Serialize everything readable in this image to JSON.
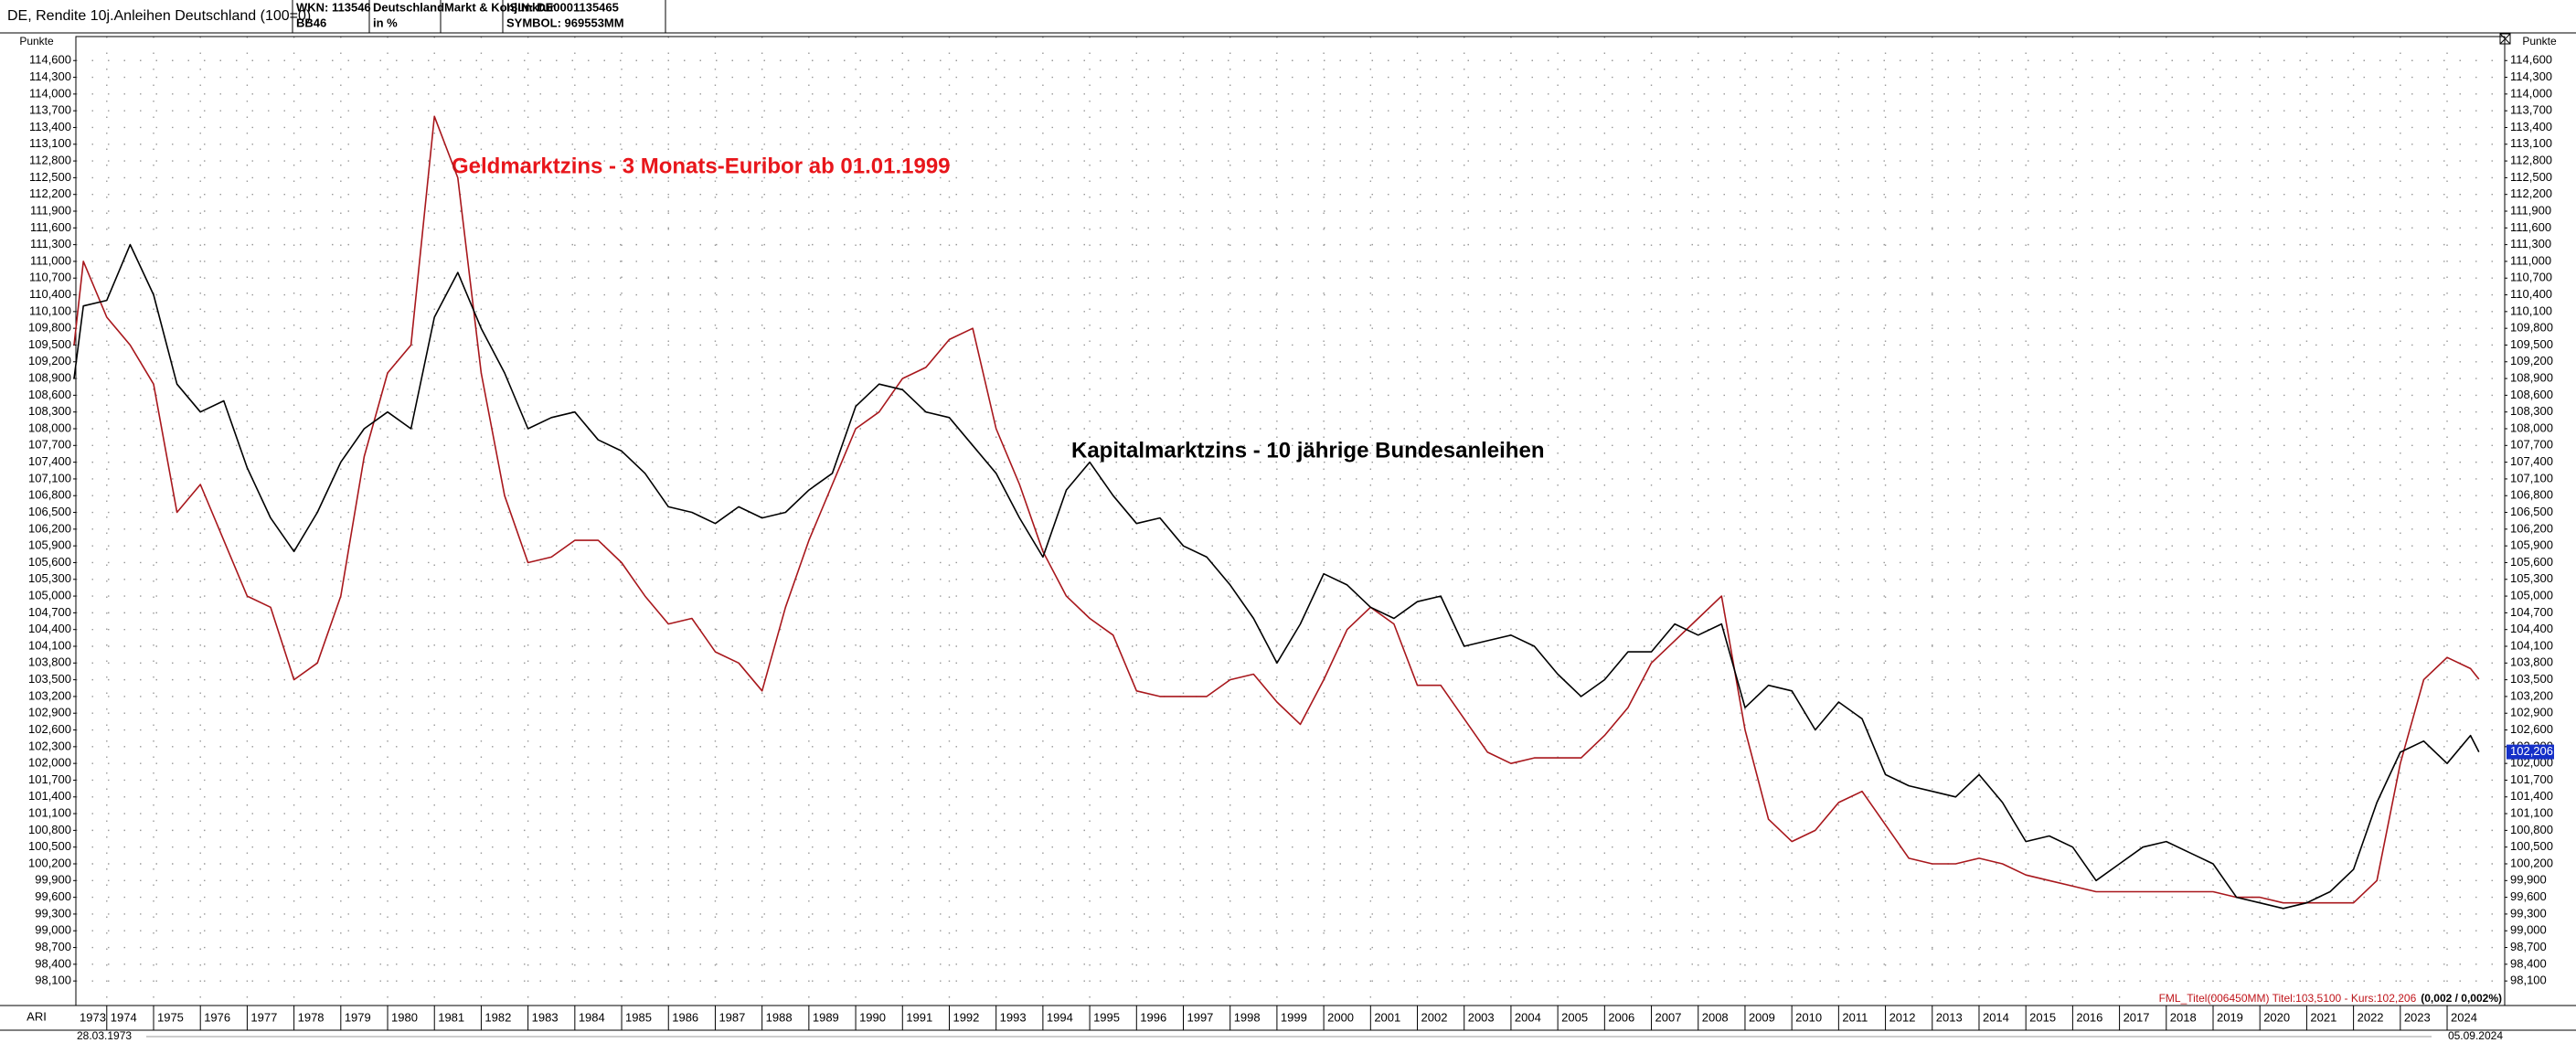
{
  "header": {
    "title": "DE, Rendite 10j.Anleihen Deutschland (100=0)",
    "cells": [
      [
        "WKN: 113546",
        "BB46"
      ],
      [
        "Deutschland",
        "in %"
      ],
      [
        "Markt & Konjunktur",
        ""
      ],
      [
        "ISIN: DE0001135465",
        "SYMBOL: 969553MM"
      ]
    ]
  },
  "chart_data": {
    "type": "line",
    "y_label": "Punkte",
    "annotations": [
      {
        "text": "Geldmarktzins - 3 Monats-Euribor ab 01.01.1999",
        "color": "#e8161b"
      },
      {
        "text": "Kapitalmarktzins - 10 jährige Bundesanleihen",
        "color": "#000000"
      }
    ],
    "footer_info": "FML_Titel(006450MM) Titel:103,5100 - Kurs:102,206",
    "footer_change": "(0,002 / 0,002%)",
    "current_label": "102,206",
    "left_label": "ARI",
    "start_date": "28.03.1973",
    "end_date": "05.09.2024",
    "grid": true,
    "xlim": [
      1973.34,
      2025.23
    ],
    "xticks": [
      1973,
      1974,
      1975,
      1976,
      1977,
      1978,
      1979,
      1980,
      1981,
      1982,
      1983,
      1984,
      1985,
      1986,
      1987,
      1988,
      1989,
      1990,
      1991,
      1992,
      1993,
      1994,
      1995,
      1996,
      1997,
      1998,
      1999,
      2000,
      2001,
      2002,
      2003,
      2004,
      2005,
      2006,
      2007,
      2008,
      2009,
      2010,
      2011,
      2012,
      2013,
      2014,
      2015,
      2016,
      2017,
      2018,
      2019,
      2020,
      2021,
      2022,
      2023,
      2024
    ],
    "ylim": [
      97.66,
      115.03
    ],
    "yticks": [
      {
        "value": 98.1,
        "label": "98,100"
      },
      {
        "value": 98.4,
        "label": "98,400"
      },
      {
        "value": 98.7,
        "label": "98,700"
      },
      {
        "value": 99.0,
        "label": "99,000"
      },
      {
        "value": 99.3,
        "label": "99,300"
      },
      {
        "value": 99.6,
        "label": "99,600"
      },
      {
        "value": 99.9,
        "label": "99,900"
      },
      {
        "value": 100.2,
        "label": "100,200"
      },
      {
        "value": 100.5,
        "label": "100,500"
      },
      {
        "value": 100.8,
        "label": "100,800"
      },
      {
        "value": 101.1,
        "label": "101,100"
      },
      {
        "value": 101.4,
        "label": "101,400"
      },
      {
        "value": 101.7,
        "label": "101,700"
      },
      {
        "value": 102.0,
        "label": "102,000"
      },
      {
        "value": 102.3,
        "label": "102,300"
      },
      {
        "value": 102.6,
        "label": "102,600"
      },
      {
        "value": 102.9,
        "label": "102,900"
      },
      {
        "value": 103.2,
        "label": "103,200"
      },
      {
        "value": 103.5,
        "label": "103,500"
      },
      {
        "value": 103.8,
        "label": "103,800"
      },
      {
        "value": 104.1,
        "label": "104,100"
      },
      {
        "value": 104.4,
        "label": "104,400"
      },
      {
        "value": 104.7,
        "label": "104,700"
      },
      {
        "value": 105.0,
        "label": "105,000"
      },
      {
        "value": 105.3,
        "label": "105,300"
      },
      {
        "value": 105.6,
        "label": "105,600"
      },
      {
        "value": 105.9,
        "label": "105,900"
      },
      {
        "value": 106.2,
        "label": "106,200"
      },
      {
        "value": 106.5,
        "label": "106,500"
      },
      {
        "value": 106.8,
        "label": "106,800"
      },
      {
        "value": 107.1,
        "label": "107,100"
      },
      {
        "value": 107.4,
        "label": "107,400"
      },
      {
        "value": 107.7,
        "label": "107,700"
      },
      {
        "value": 108.0,
        "label": "108,000"
      },
      {
        "value": 108.3,
        "label": "108,300"
      },
      {
        "value": 108.6,
        "label": "108,600"
      },
      {
        "value": 108.9,
        "label": "108,900"
      },
      {
        "value": 109.2,
        "label": "109,200"
      },
      {
        "value": 109.5,
        "label": "109,500"
      },
      {
        "value": 109.8,
        "label": "109,800"
      },
      {
        "value": 110.1,
        "label": "110,100"
      },
      {
        "value": 110.4,
        "label": "110,400"
      },
      {
        "value": 110.7,
        "label": "110,700"
      },
      {
        "value": 111.0,
        "label": "111,000"
      },
      {
        "value": 111.3,
        "label": "111,300"
      },
      {
        "value": 111.6,
        "label": "111,600"
      },
      {
        "value": 111.9,
        "label": "111,900"
      },
      {
        "value": 112.2,
        "label": "112,200"
      },
      {
        "value": 112.5,
        "label": "112,500"
      },
      {
        "value": 112.8,
        "label": "112,800"
      },
      {
        "value": 113.1,
        "label": "113,100"
      },
      {
        "value": 113.4,
        "label": "113,400"
      },
      {
        "value": 113.7,
        "label": "113,700"
      },
      {
        "value": 114.0,
        "label": "114,000"
      },
      {
        "value": 114.3,
        "label": "114,300"
      },
      {
        "value": 114.6,
        "label": "114,600"
      }
    ],
    "x": [
      1973.3,
      1973.5,
      1974.0,
      1974.5,
      1975.0,
      1975.5,
      1976.0,
      1976.5,
      1977.0,
      1977.5,
      1978.0,
      1978.5,
      1979.0,
      1979.5,
      1980.0,
      1980.5,
      1981.0,
      1981.5,
      1982.0,
      1982.5,
      1983.0,
      1983.5,
      1984.0,
      1984.5,
      1985.0,
      1985.5,
      1986.0,
      1986.5,
      1987.0,
      1987.5,
      1988.0,
      1988.5,
      1989.0,
      1989.5,
      1990.0,
      1990.5,
      1991.0,
      1991.5,
      1992.0,
      1992.5,
      1993.0,
      1993.5,
      1994.0,
      1994.5,
      1995.0,
      1995.5,
      1996.0,
      1996.5,
      1997.0,
      1997.5,
      1998.0,
      1998.5,
      1999.0,
      1999.5,
      2000.0,
      2000.5,
      2001.0,
      2001.5,
      2002.0,
      2002.5,
      2003.0,
      2003.5,
      2004.0,
      2004.5,
      2005.0,
      2005.5,
      2006.0,
      2006.5,
      2007.0,
      2007.5,
      2008.0,
      2008.5,
      2009.0,
      2009.5,
      2010.0,
      2010.5,
      2011.0,
      2011.5,
      2012.0,
      2012.5,
      2013.0,
      2013.5,
      2014.0,
      2014.5,
      2015.0,
      2015.5,
      2016.0,
      2016.5,
      2017.0,
      2017.5,
      2018.0,
      2018.5,
      2019.0,
      2019.5,
      2020.0,
      2020.5,
      2021.0,
      2021.5,
      2022.0,
      2022.5,
      2023.0,
      2023.5,
      2024.0,
      2024.5,
      2024.68
    ],
    "series": [
      {
        "color": "#000000",
        "values": [
          108.9,
          110.2,
          110.3,
          111.3,
          110.4,
          108.8,
          108.3,
          108.5,
          107.3,
          106.4,
          105.8,
          106.5,
          107.4,
          108.0,
          108.3,
          108.0,
          110.0,
          110.8,
          109.8,
          109.0,
          108.0,
          108.2,
          108.3,
          107.8,
          107.6,
          107.2,
          106.6,
          106.5,
          106.3,
          106.6,
          106.4,
          106.5,
          106.9,
          107.2,
          108.4,
          108.8,
          108.7,
          108.3,
          108.2,
          107.7,
          107.2,
          106.4,
          105.7,
          106.9,
          107.4,
          106.8,
          106.3,
          106.4,
          105.9,
          105.7,
          105.2,
          104.6,
          103.8,
          104.5,
          105.4,
          105.2,
          104.8,
          104.6,
          104.9,
          105.0,
          104.1,
          104.2,
          104.3,
          104.1,
          103.6,
          103.2,
          103.5,
          104.0,
          104.0,
          104.5,
          104.3,
          104.5,
          103.0,
          103.4,
          103.3,
          102.6,
          103.1,
          102.8,
          101.8,
          101.6,
          101.5,
          101.4,
          101.8,
          101.3,
          100.6,
          100.7,
          100.5,
          99.9,
          100.2,
          100.5,
          100.6,
          100.4,
          100.2,
          99.6,
          99.5,
          99.4,
          99.5,
          99.7,
          100.1,
          101.3,
          102.2,
          102.4,
          102.0,
          102.5,
          102.206
        ]
      },
      {
        "color": "#a8171c",
        "values": [
          109.5,
          111.0,
          110.0,
          109.5,
          108.8,
          106.5,
          107.0,
          106.0,
          105.0,
          104.8,
          103.5,
          103.8,
          105.0,
          107.5,
          109.0,
          109.5,
          113.6,
          112.5,
          109.0,
          106.8,
          105.6,
          105.7,
          106.0,
          106.0,
          105.6,
          105.0,
          104.5,
          104.6,
          104.0,
          103.8,
          103.3,
          104.8,
          106.0,
          107.0,
          108.0,
          108.3,
          108.9,
          109.1,
          109.6,
          109.8,
          108.0,
          107.0,
          105.8,
          105.0,
          104.6,
          104.3,
          103.3,
          103.2,
          103.2,
          103.2,
          103.5,
          103.6,
          103.1,
          102.7,
          103.5,
          104.4,
          104.8,
          104.5,
          103.4,
          103.4,
          102.8,
          102.2,
          102.0,
          102.1,
          102.1,
          102.1,
          102.5,
          103.0,
          103.8,
          104.2,
          104.6,
          105.0,
          102.6,
          101.0,
          100.6,
          100.8,
          101.3,
          101.5,
          100.9,
          100.3,
          100.2,
          100.2,
          100.3,
          100.2,
          100.0,
          99.9,
          99.8,
          99.7,
          99.7,
          99.7,
          99.7,
          99.7,
          99.7,
          99.6,
          99.6,
          99.5,
          99.5,
          99.5,
          99.5,
          99.9,
          102.0,
          103.5,
          103.9,
          103.7,
          103.51
        ]
      }
    ]
  }
}
